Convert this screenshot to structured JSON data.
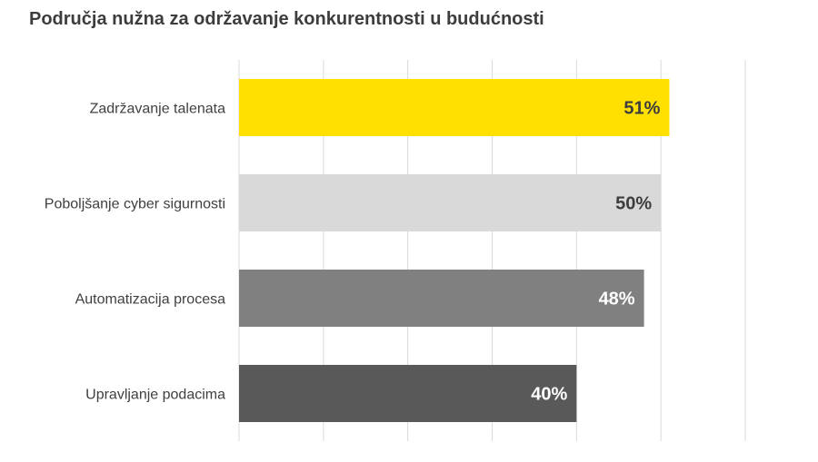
{
  "chart_data": {
    "type": "bar",
    "orientation": "horizontal",
    "title": "Područja nužna za održavanje konkurentnosti u budućnosti",
    "categories": [
      "Zadržavanje talenata",
      "Poboljšanje cyber sigurnosti",
      "Automatizacija procesa",
      "Upravljanje podacima"
    ],
    "values": [
      51,
      50,
      48,
      40
    ],
    "data_labels": [
      "51%",
      "50%",
      "48%",
      "40%"
    ],
    "bar_colors": [
      "#ffe000",
      "#d9d9d9",
      "#808080",
      "#595959"
    ],
    "label_colors": [
      "#3d3d3d",
      "#3d3d3d",
      "#ffffff",
      "#ffffff"
    ],
    "xlim": [
      0,
      60
    ],
    "x_gridline_step": 10,
    "grid": true,
    "legend": "none"
  }
}
